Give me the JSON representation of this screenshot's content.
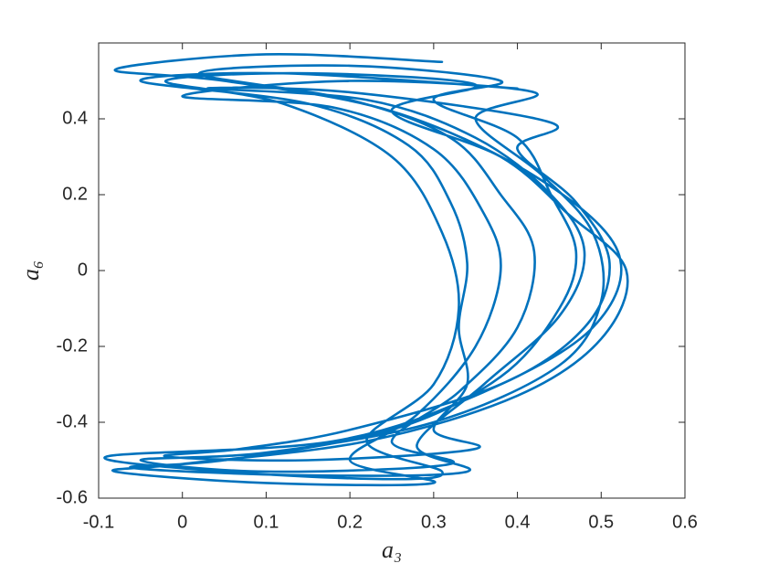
{
  "chart_data": {
    "type": "line",
    "xlabel": "a₃",
    "ylabel": "a₆",
    "x": [
      0.31,
      0.1,
      -0.08,
      0.05,
      0.25,
      0.42,
      0.52,
      0.49,
      0.36,
      0.18,
      -0.09,
      0.05,
      0.25,
      0.31,
      0.22,
      0.3,
      0.33,
      0.31,
      0.25,
      0.12,
      -0.02,
      0.15,
      0.35,
      0.25,
      0.38,
      0.46,
      0.53,
      0.5,
      0.4,
      0.22,
      0.0,
      -0.08,
      0.1,
      0.3,
      0.2,
      0.28,
      0.35,
      0.38,
      0.36,
      0.3,
      0.18,
      0.0,
      0.2,
      0.42,
      0.35,
      0.43,
      0.49,
      0.5,
      0.45,
      0.3,
      0.1,
      -0.05,
      0.1,
      0.32,
      0.25,
      0.33,
      0.4,
      0.42,
      0.38,
      0.32,
      0.2,
      0.02,
      0.2,
      0.38,
      0.3,
      0.4,
      0.44,
      0.47,
      0.45,
      0.38,
      0.25,
      0.05,
      -0.06,
      0.15,
      0.34,
      0.28,
      0.36,
      0.45,
      0.48,
      0.44,
      0.35,
      0.22,
      0.03,
      0.2,
      0.44,
      0.4,
      0.47,
      0.51,
      0.48,
      0.38,
      0.2,
      0.07,
      -0.02,
      0.15,
      0.35,
      0.3,
      0.34,
      0.33,
      0.34,
      0.32,
      0.27,
      0.15,
      -0.05,
      0.12,
      0.4
    ],
    "series": [
      {
        "color": "#0072bd",
        "values": [
          0.55,
          0.57,
          0.53,
          0.5,
          0.42,
          0.25,
          0.05,
          -0.15,
          -0.32,
          -0.45,
          -0.49,
          -0.53,
          -0.55,
          -0.53,
          -0.45,
          -0.3,
          -0.1,
          0.1,
          0.3,
          0.44,
          0.5,
          0.52,
          0.49,
          0.42,
          0.3,
          0.15,
          0,
          -0.18,
          -0.33,
          -0.45,
          -0.51,
          -0.53,
          -0.56,
          -0.56,
          -0.5,
          -0.38,
          -0.2,
          0,
          0.15,
          0.32,
          0.43,
          0.46,
          0.5,
          0.47,
          0.4,
          0.25,
          0.1,
          -0.08,
          -0.25,
          -0.4,
          -0.48,
          -0.5,
          -0.53,
          -0.51,
          -0.45,
          -0.32,
          -0.15,
          0.05,
          0.2,
          0.35,
          0.45,
          0.52,
          0.54,
          0.5,
          0.45,
          0.35,
          0.2,
          0.05,
          -0.1,
          -0.28,
          -0.42,
          -0.5,
          -0.52,
          -0.54,
          -0.53,
          -0.46,
          -0.3,
          -0.12,
          0.05,
          0.2,
          0.35,
          0.45,
          0.48,
          0.47,
          0.39,
          0.32,
          0.18,
          0.02,
          -0.15,
          -0.3,
          -0.42,
          -0.47,
          -0.49,
          -0.5,
          -0.47,
          -0.42,
          -0.3,
          -0.15,
          0.02,
          0.18,
          0.33,
          0.44,
          0.5,
          0.52,
          0.48
        ]
      }
    ],
    "xlim": [
      -0.1,
      0.6
    ],
    "xticks": [
      -0.1,
      0,
      0.1,
      0.2,
      0.3,
      0.4,
      0.5,
      0.6
    ],
    "ylim": [
      -0.6,
      0.6
    ],
    "yticks": [
      -0.6,
      -0.4,
      -0.2,
      0,
      0.2,
      0.4
    ]
  }
}
